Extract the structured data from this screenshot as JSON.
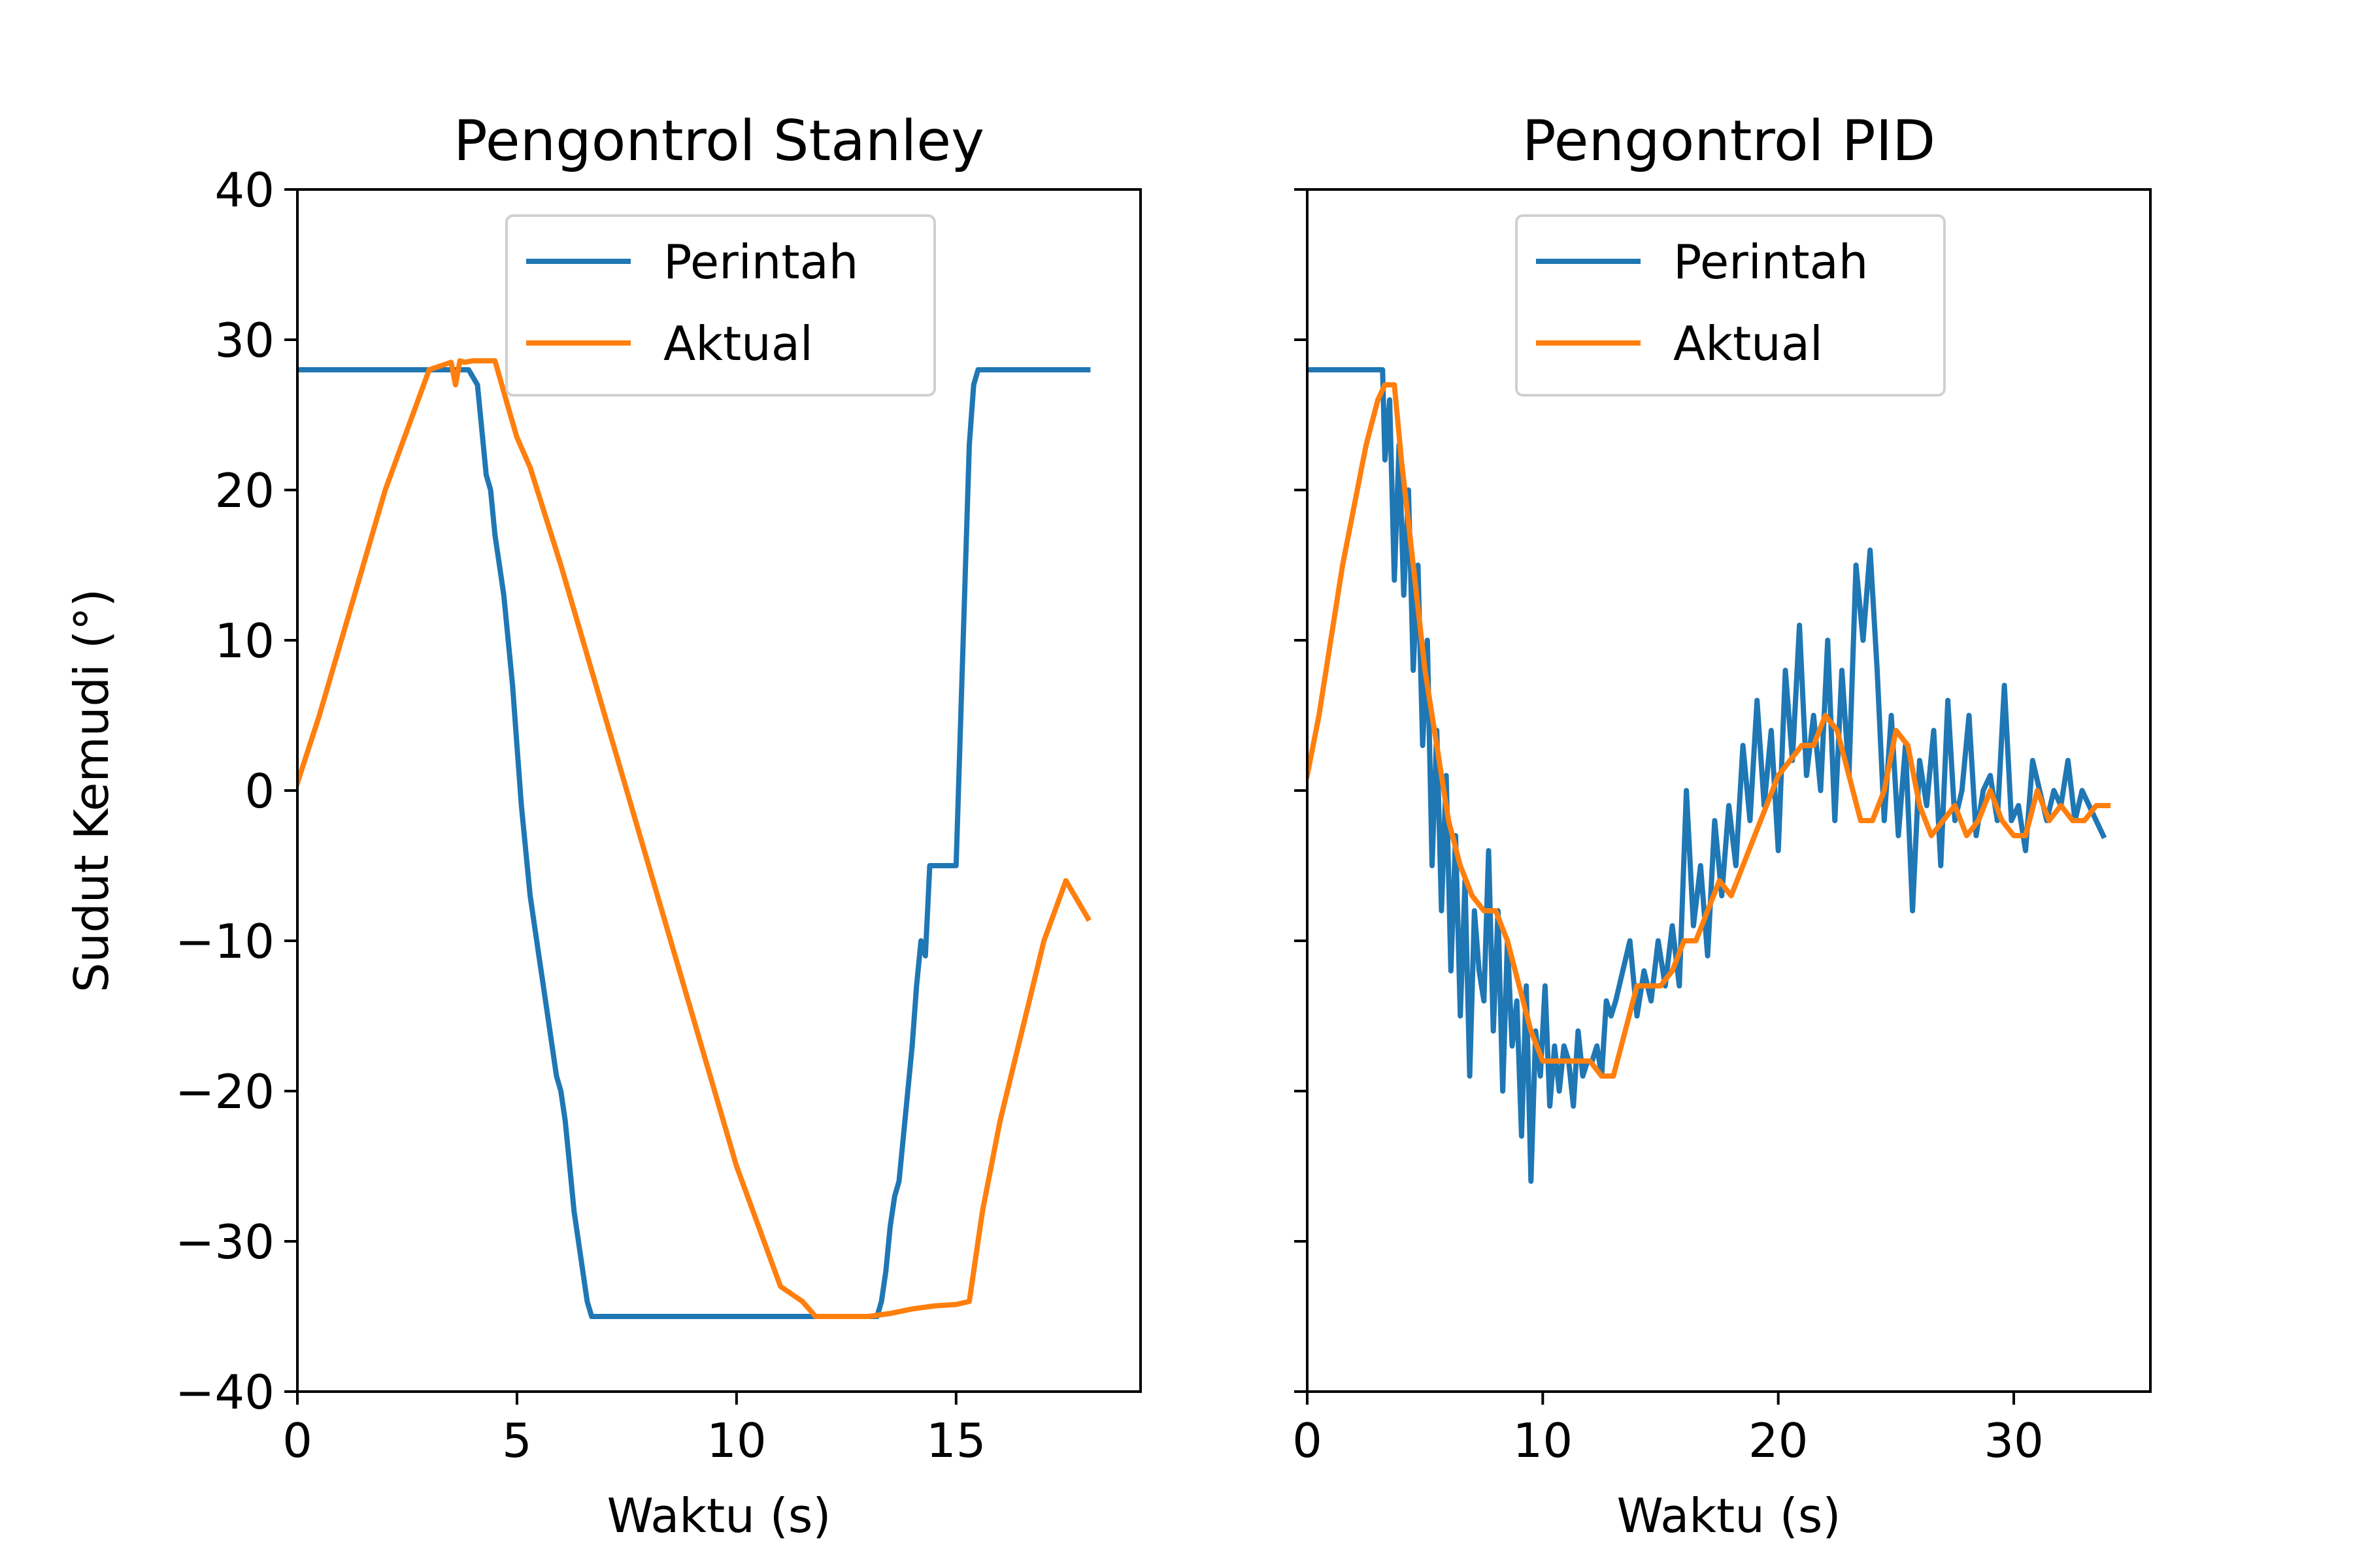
{
  "ylabel": "Sudut Kemudi (°)",
  "colors": {
    "perintah": "#1f77b4",
    "aktual": "#ff7f0e"
  },
  "chart_data": [
    {
      "type": "line",
      "title": "Pengontrol Stanley",
      "xlabel": "Waktu (s)",
      "ylabel": "Sudut Kemudi (°)",
      "xlim": [
        0,
        19.2
      ],
      "ylim": [
        -40,
        40
      ],
      "xticks": [
        0,
        5,
        10,
        15
      ],
      "yticks": [
        -40,
        -30,
        -20,
        -10,
        0,
        10,
        20,
        30,
        40
      ],
      "grid": false,
      "legend": "top-right",
      "series": [
        {
          "name": "Perintah",
          "x": [
            0,
            3.9,
            4.1,
            4.2,
            4.3,
            4.4,
            4.5,
            4.6,
            4.7,
            4.8,
            4.9,
            5.0,
            5.1,
            5.2,
            5.3,
            5.4,
            5.5,
            5.6,
            5.7,
            5.8,
            5.9,
            6.0,
            6.1,
            6.2,
            6.3,
            6.4,
            6.5,
            6.6,
            6.7,
            6.8,
            6.9,
            7.0,
            13.2,
            13.3,
            13.4,
            13.5,
            13.6,
            13.7,
            13.8,
            13.9,
            14.0,
            14.1,
            14.2,
            14.3,
            14.4,
            14.5,
            14.6,
            14.7,
            14.8,
            14.9,
            15.0,
            15.3,
            15.4,
            15.5,
            15.6,
            18.0
          ],
          "y": [
            28,
            28,
            27,
            24,
            21,
            20,
            17,
            15,
            13,
            10,
            7,
            3,
            -1,
            -4,
            -7,
            -9,
            -11,
            -13,
            -15,
            -17,
            -19,
            -20,
            -22,
            -25,
            -28,
            -30,
            -32,
            -34,
            -35,
            -35,
            -35,
            -35,
            -35,
            -34,
            -32,
            -29,
            -27,
            -26,
            -23,
            -20,
            -17,
            -13,
            -10,
            -11,
            -5,
            -5,
            -5,
            -5,
            -5,
            -5,
            -5,
            23,
            27,
            28,
            28,
            28
          ]
        },
        {
          "name": "Aktual",
          "x": [
            0,
            0.5,
            1.0,
            1.5,
            2.0,
            2.5,
            3.0,
            3.3,
            3.5,
            3.6,
            3.7,
            3.8,
            4.0,
            4.5,
            4.8,
            5.0,
            5.3,
            6.0,
            7.0,
            8.0,
            9.0,
            10.0,
            11.0,
            11.5,
            11.8,
            12.0,
            12.5,
            13.0,
            13.5,
            14.0,
            14.5,
            15.0,
            15.3,
            15.6,
            16.0,
            16.5,
            17.0,
            17.5,
            18.0
          ],
          "y": [
            0.5,
            5,
            10,
            15,
            20,
            24,
            28,
            28.3,
            28.5,
            27,
            28.6,
            28.5,
            28.6,
            28.6,
            25.5,
            23.5,
            21.5,
            15,
            5,
            -5,
            -15,
            -25,
            -33,
            -34,
            -35,
            -35,
            -35,
            -35,
            -34.8,
            -34.5,
            -34.3,
            -34.2,
            -34.0,
            -28,
            -22,
            -16,
            -10,
            -6,
            -8.5
          ]
        }
      ]
    },
    {
      "type": "line",
      "title": "Pengontrol PID",
      "xlabel": "Waktu (s)",
      "ylabel": "",
      "xlim": [
        0,
        35.8
      ],
      "ylim": [
        -40,
        40
      ],
      "xticks": [
        0,
        10,
        20,
        30
      ],
      "yticks": [
        -40,
        -30,
        -20,
        -10,
        0,
        10,
        20,
        30,
        40
      ],
      "grid": false,
      "legend": "top-right",
      "series": [
        {
          "name": "Perintah",
          "x": [
            0,
            3.2,
            3.3,
            3.5,
            3.7,
            3.9,
            4.1,
            4.3,
            4.5,
            4.7,
            4.9,
            5.1,
            5.3,
            5.5,
            5.7,
            5.9,
            6.1,
            6.3,
            6.5,
            6.7,
            6.9,
            7.1,
            7.3,
            7.5,
            7.7,
            7.9,
            8.1,
            8.3,
            8.5,
            8.7,
            8.9,
            9.1,
            9.3,
            9.5,
            9.7,
            9.9,
            10.1,
            10.3,
            10.5,
            10.7,
            10.9,
            11.1,
            11.3,
            11.5,
            11.7,
            11.9,
            12.1,
            12.3,
            12.5,
            12.7,
            12.9,
            13.1,
            13.4,
            13.7,
            14.0,
            14.3,
            14.6,
            14.9,
            15.2,
            15.5,
            15.8,
            16.1,
            16.4,
            16.7,
            17.0,
            17.3,
            17.6,
            17.9,
            18.2,
            18.5,
            18.8,
            19.1,
            19.4,
            19.7,
            20.0,
            20.3,
            20.6,
            20.9,
            21.2,
            21.5,
            21.8,
            22.1,
            22.4,
            22.7,
            23.0,
            23.3,
            23.6,
            23.9,
            24.2,
            24.5,
            24.8,
            25.1,
            25.4,
            25.7,
            26.0,
            26.3,
            26.6,
            26.9,
            27.2,
            27.5,
            27.8,
            28.1,
            28.4,
            28.7,
            29.0,
            29.3,
            29.6,
            29.9,
            30.2,
            30.5,
            30.8,
            31.1,
            31.4,
            31.7,
            32.0,
            32.3,
            32.6,
            32.9,
            33.2,
            33.5,
            33.8
          ],
          "y": [
            28,
            28,
            22,
            26,
            14,
            23,
            13,
            20,
            8,
            15,
            3,
            10,
            -5,
            4,
            -8,
            1,
            -12,
            -3,
            -15,
            -6,
            -19,
            -8,
            -12,
            -14,
            -4,
            -16,
            -8,
            -20,
            -10,
            -17,
            -14,
            -23,
            -13,
            -26,
            -16,
            -19,
            -13,
            -21,
            -17,
            -20,
            -17,
            -18,
            -21,
            -16,
            -19,
            -18,
            -18,
            -17,
            -19,
            -14,
            -15,
            -14,
            -12,
            -10,
            -15,
            -12,
            -14,
            -10,
            -13,
            -9,
            -13,
            0,
            -9,
            -5,
            -11,
            -2,
            -7,
            -1,
            -5,
            3,
            -2,
            6,
            -1,
            4,
            -4,
            8,
            2,
            11,
            1,
            5,
            0,
            10,
            -2,
            8,
            1,
            15,
            10,
            16,
            8,
            -2,
            5,
            -3,
            3,
            -8,
            2,
            -1,
            4,
            -5,
            6,
            -2,
            0,
            5,
            -3,
            0,
            1,
            -2,
            7,
            -2,
            -1,
            -4,
            2,
            0,
            -2,
            0,
            -1,
            2,
            -2,
            0,
            -1,
            -2,
            -3
          ]
        },
        {
          "name": "Aktual",
          "x": [
            0,
            0.5,
            1.0,
            1.5,
            2.0,
            2.5,
            3.0,
            3.3,
            3.5,
            3.7,
            4.0,
            4.5,
            5.0,
            5.5,
            6.0,
            6.5,
            7.0,
            7.5,
            8.0,
            8.5,
            9.0,
            9.5,
            10.0,
            10.5,
            11.0,
            11.5,
            12.0,
            12.5,
            13.0,
            13.5,
            14.0,
            14.5,
            15.0,
            15.5,
            16.0,
            16.5,
            17.0,
            17.5,
            18.0,
            18.5,
            19.0,
            19.5,
            20.0,
            20.5,
            21.0,
            21.5,
            22.0,
            22.5,
            23.0,
            23.5,
            24.0,
            24.5,
            25.0,
            25.5,
            26.0,
            26.5,
            27.0,
            27.5,
            28.0,
            28.5,
            29.0,
            29.5,
            30.0,
            30.5,
            31.0,
            31.5,
            32.0,
            32.5,
            33.0,
            33.5,
            34.0
          ],
          "y": [
            1,
            5,
            10,
            15,
            19,
            23,
            26,
            27,
            27,
            27,
            22,
            15,
            8,
            3,
            -2,
            -5,
            -7,
            -8,
            -8,
            -10,
            -13,
            -16,
            -18,
            -18,
            -18,
            -18,
            -18,
            -19,
            -19,
            -16,
            -13,
            -13,
            -13,
            -12,
            -10,
            -10,
            -8,
            -6,
            -7,
            -5,
            -3,
            -1,
            1,
            2,
            3,
            3,
            5,
            4,
            1,
            -2,
            -2,
            0,
            4,
            3,
            -1,
            -3,
            -2,
            -1,
            -3,
            -2,
            0,
            -2,
            -3,
            -3,
            0,
            -2,
            -1,
            -2,
            -2,
            -1,
            -1
          ]
        }
      ]
    }
  ]
}
